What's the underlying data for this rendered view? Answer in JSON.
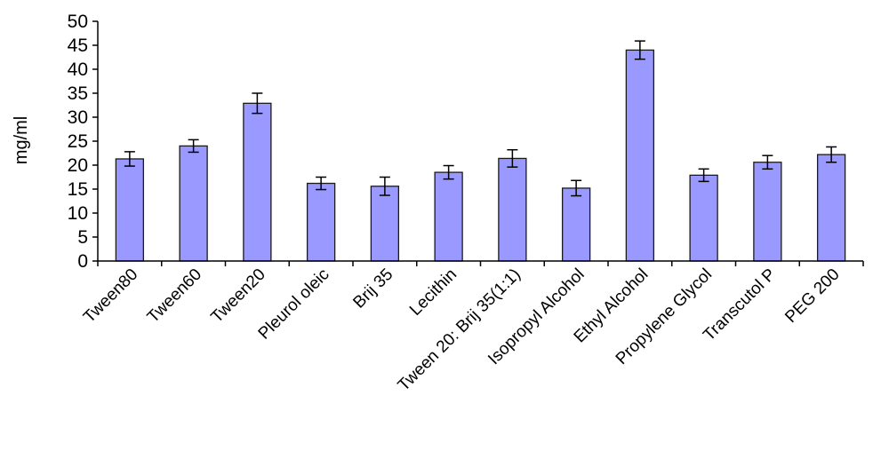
{
  "chart_data": {
    "type": "bar",
    "title": "",
    "xlabel": "",
    "ylabel": "mg/ml",
    "ylim": [
      0,
      50
    ],
    "yticks": [
      0,
      5,
      10,
      15,
      20,
      25,
      30,
      35,
      40,
      45,
      50
    ],
    "grid": false,
    "legend": "none",
    "bar_color": "#9999ff",
    "bar_edge_color": "#1a1a1a",
    "categories": [
      "Tween80",
      "Tween60",
      "Tween20",
      "Pleurol oleic",
      "Brij 35",
      "Lecithin",
      "Tween 20: Brij 35(1:1)",
      "Isopropyl Alcohol",
      "Ethyl Alcohol",
      "Propylene Glycol",
      "Transcutol P",
      "PEG 200"
    ],
    "values": [
      21.3,
      24.0,
      32.9,
      16.2,
      15.6,
      18.5,
      21.4,
      15.2,
      44.0,
      17.9,
      20.6,
      22.2
    ],
    "errors": [
      1.5,
      1.3,
      2.1,
      1.3,
      1.9,
      1.4,
      1.8,
      1.6,
      1.9,
      1.3,
      1.4,
      1.6
    ]
  }
}
